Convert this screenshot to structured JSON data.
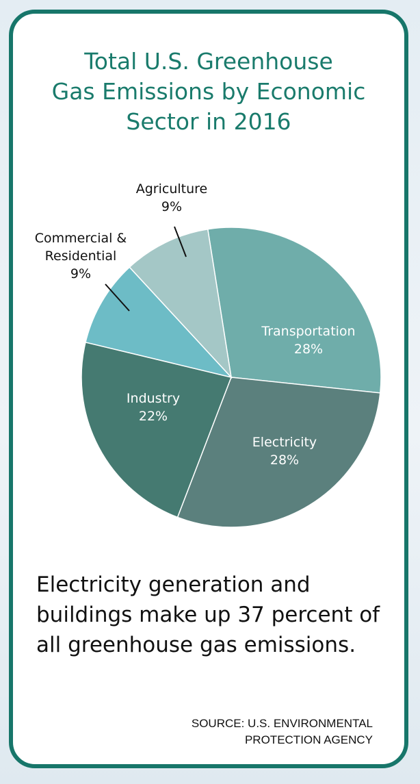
{
  "accent_color": "#17766a",
  "title": "Total U.S. Greenhouse\nGas Emissions by Economic\nSector in 2016",
  "caption": "Electricity generation and buildings make up 37 percent of all greenhouse gas emissions.",
  "source": "SOURCE: U.S. ENVIRONMENTAL\nPROTECTION AGENCY",
  "chart_data": {
    "type": "pie",
    "title": "Total U.S. Greenhouse Gas Emissions by Economic Sector in 2016",
    "unit": "%",
    "slices": [
      {
        "label": "Transportation",
        "value": 28,
        "value_label": "28%",
        "color": "#6fadaa"
      },
      {
        "label": "Electricity",
        "value": 28,
        "value_label": "28%",
        "color": "#5b807d"
      },
      {
        "label": "Industry",
        "value": 22,
        "value_label": "22%",
        "color": "#457a71"
      },
      {
        "label": "Commercial & Residential",
        "value": 9,
        "value_label": "9%",
        "color": "#6dbcc6"
      },
      {
        "label": "Agriculture",
        "value": 9,
        "value_label": "9%",
        "color": "#a4c7c6"
      }
    ]
  }
}
